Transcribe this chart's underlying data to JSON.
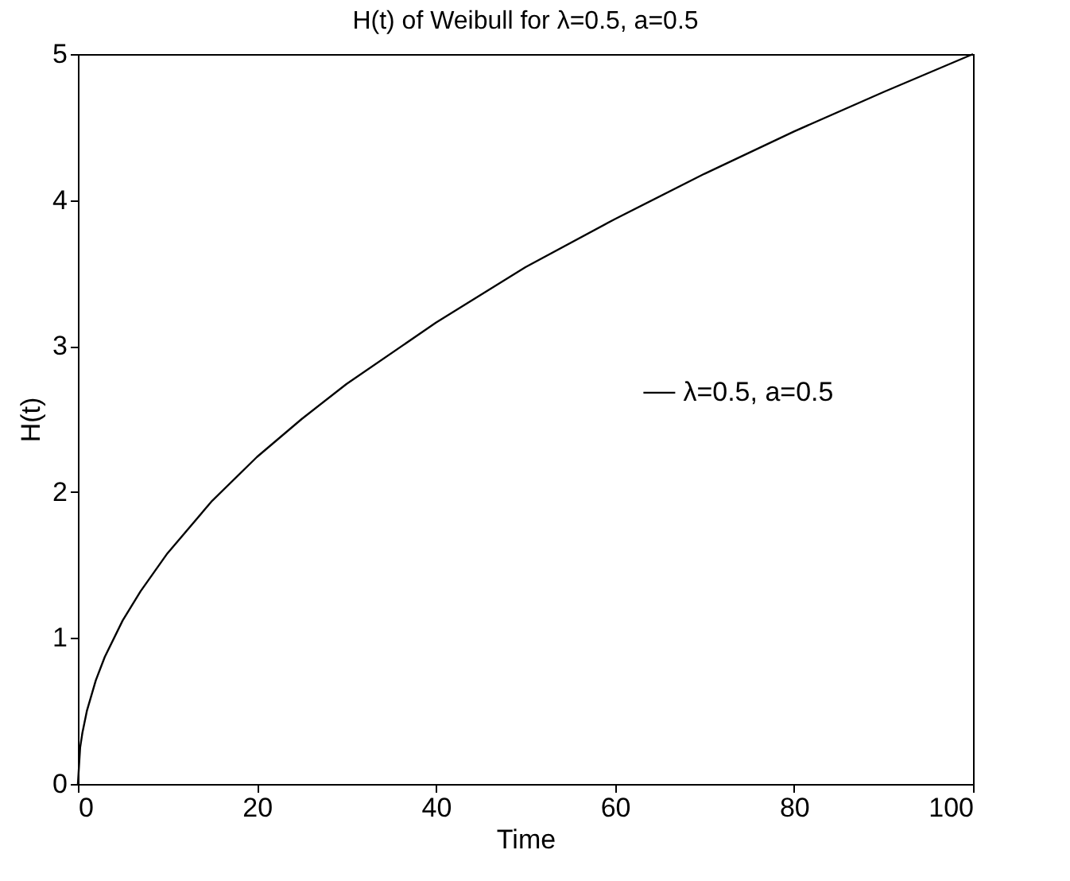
{
  "chart_data": {
    "type": "line",
    "title": "H(t) of Weibull for λ=0.5, a=0.5",
    "xlabel": "Time",
    "ylabel": "H(t)",
    "x": [
      0,
      0.25,
      0.5,
      1,
      2,
      3,
      5,
      7,
      10,
      15,
      20,
      25,
      30,
      40,
      50,
      60,
      70,
      80,
      90,
      100
    ],
    "series": [
      {
        "name": "λ=0.5, a=0.5",
        "color": "#000000",
        "values": [
          0,
          0.25,
          0.35,
          0.5,
          0.71,
          0.87,
          1.12,
          1.32,
          1.58,
          1.94,
          2.24,
          2.5,
          2.74,
          3.16,
          3.54,
          3.87,
          4.18,
          4.47,
          4.74,
          5
        ]
      }
    ],
    "xlim": [
      0,
      100
    ],
    "xticks": [
      0,
      20,
      40,
      60,
      80,
      100
    ],
    "ylim": [
      0,
      5
    ],
    "yticks": [
      0,
      1,
      2,
      3,
      4,
      5
    ],
    "legend": "right",
    "grid": false,
    "marker": "none",
    "line_style": "solid"
  }
}
